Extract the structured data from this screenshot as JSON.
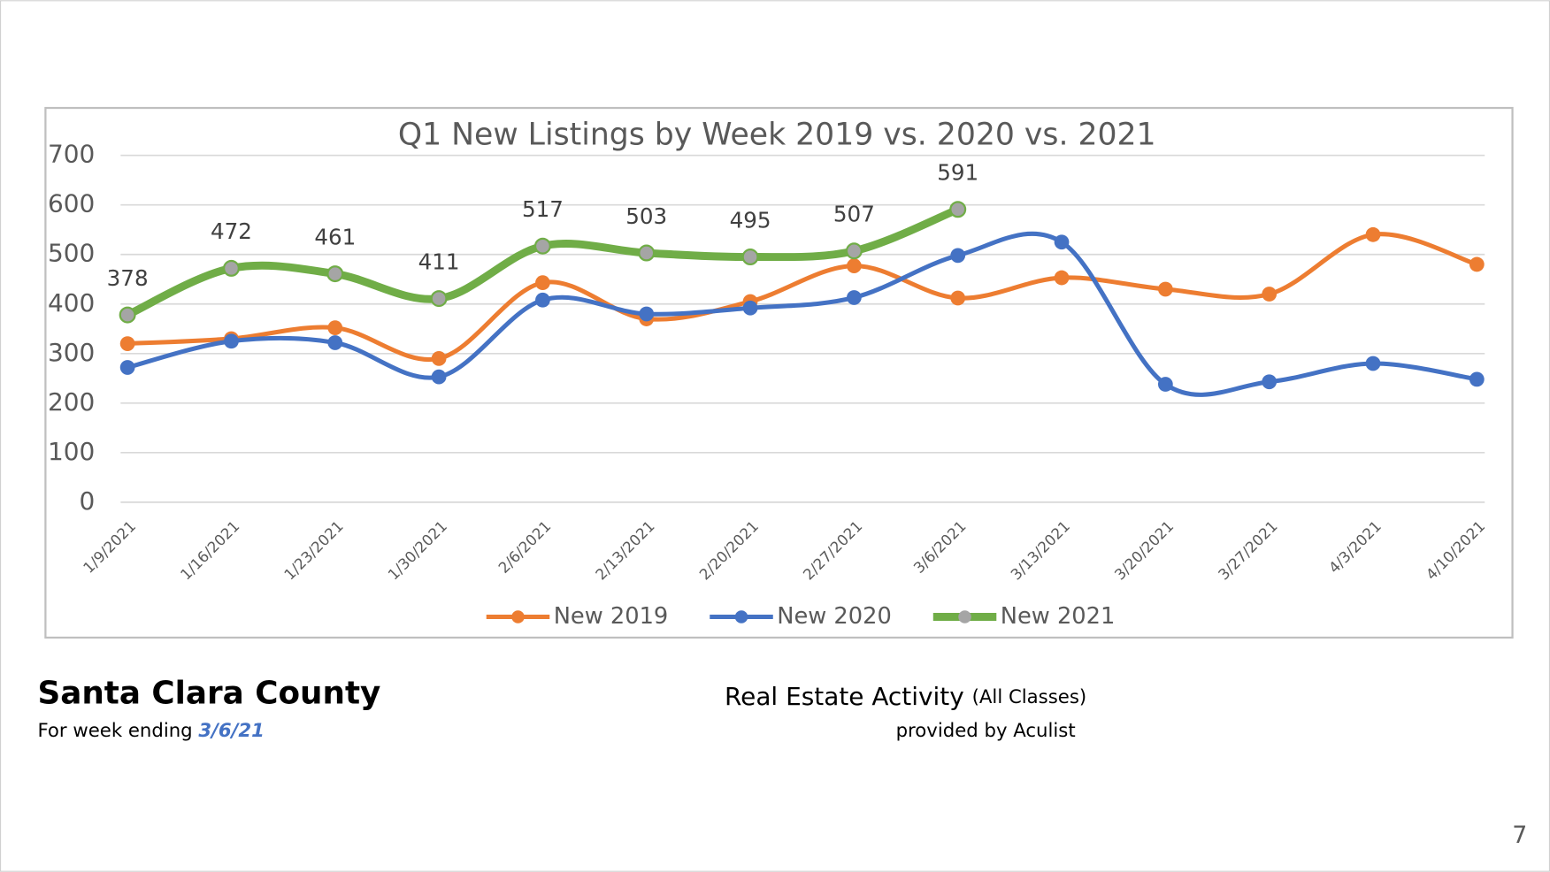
{
  "chart_data": {
    "type": "line",
    "title": "Q1 New Listings by Week 2019 vs. 2020 vs. 2021",
    "categories": [
      "1/9/2021",
      "1/16/2021",
      "1/23/2021",
      "1/30/2021",
      "2/6/2021",
      "2/13/2021",
      "2/20/2021",
      "2/27/2021",
      "3/6/2021",
      "3/13/2021",
      "3/20/2021",
      "3/27/2021",
      "4/3/2021",
      "4/10/2021"
    ],
    "series": [
      {
        "name": "New 2019",
        "color": "#ED7D31",
        "values": [
          320,
          330,
          352,
          290,
          443,
          370,
          405,
          477,
          412,
          453,
          430,
          420,
          540,
          480
        ]
      },
      {
        "name": "New 2020",
        "color": "#4472C4",
        "values": [
          272,
          325,
          322,
          253,
          408,
          380,
          392,
          413,
          498,
          525,
          238,
          243,
          280,
          248
        ]
      },
      {
        "name": "New 2021",
        "color": "#70AD47",
        "marker_color": "#A5A5A5",
        "labels": true,
        "values": [
          378,
          472,
          461,
          411,
          517,
          503,
          495,
          507,
          591,
          null,
          null,
          null,
          null,
          null
        ]
      }
    ],
    "ylim": [
      0,
      700
    ],
    "yticks": [
      0,
      100,
      200,
      300,
      400,
      500,
      600,
      700
    ],
    "grid": true,
    "legend": "bottom"
  },
  "footer": {
    "county": "Santa Clara County",
    "week_prefix": "For week ending",
    "week_date": "3/6/21",
    "activity": "Real Estate Activity",
    "classes": "(All Classes)",
    "provider": "provided by Aculist",
    "page_number": "7"
  }
}
